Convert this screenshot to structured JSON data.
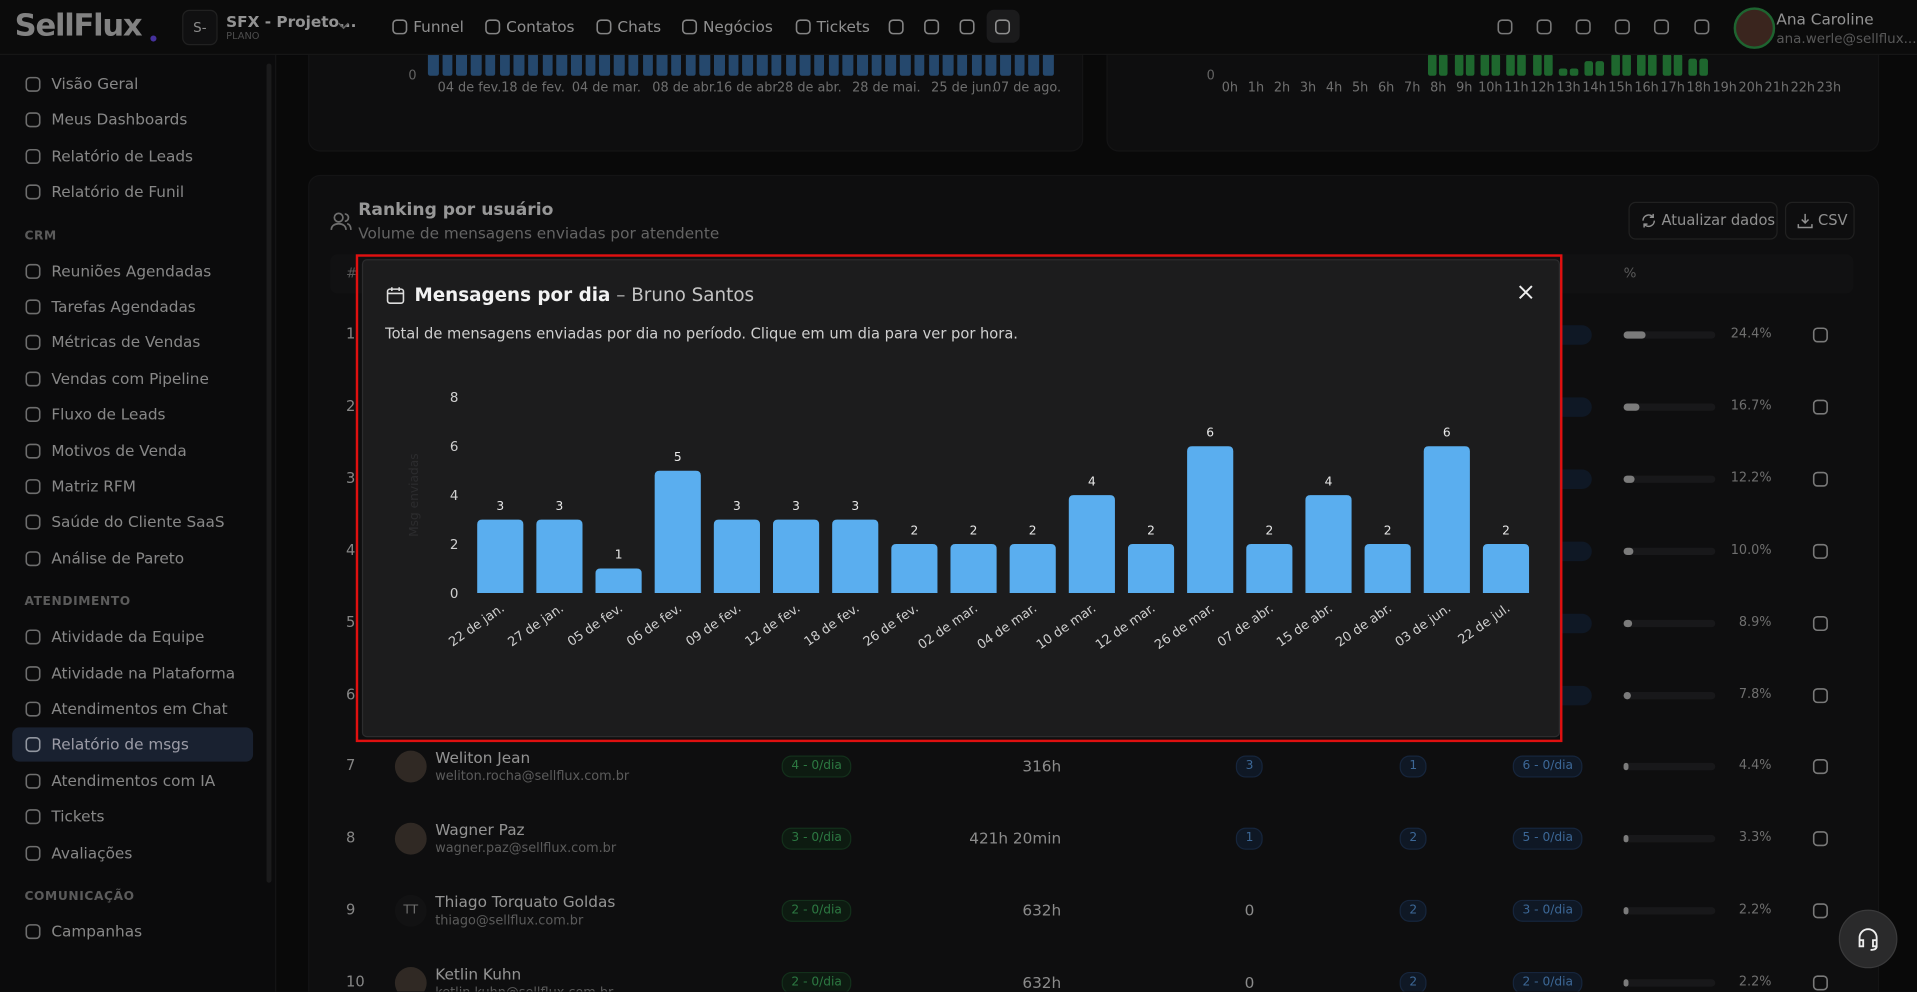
{
  "topbar": {
    "logo": "SellFlux",
    "project_badge": "S-",
    "project_name": "SFX - Projeto...",
    "project_plan": "PLANO",
    "nav": [
      "Funnel",
      "Contatos",
      "Chats",
      "Negócios",
      "Tickets"
    ],
    "user_name": "Ana Caroline",
    "user_email": "ana.werle@sellflux..."
  },
  "sidebar": {
    "items": [
      "Visão Geral",
      "Meus Dashboards",
      "Relatório de Leads",
      "Relatório de Funil"
    ],
    "sections": [
      {
        "title": "CRM",
        "items": [
          "Reuniões Agendadas",
          "Tarefas Agendadas",
          "Métricas de Vendas",
          "Vendas com Pipeline",
          "Fluxo de Leads",
          "Motivos de Venda",
          "Matriz RFM",
          "Saúde do Cliente SaaS",
          "Análise de Pareto"
        ]
      },
      {
        "title": "ATENDIMENTO",
        "items": [
          "Atividade da Equipe",
          "Atividade na Plataforma",
          "Atendimentos em Chat",
          "Relatório de msgs",
          "Atendimentos com IA",
          "Tickets",
          "Avaliações"
        ],
        "active": "Relatório de msgs"
      },
      {
        "title": "COMUNICAÇÃO",
        "items": [
          "Campanhas"
        ]
      }
    ]
  },
  "background_charts": [
    {
      "zero": "0",
      "labels": [
        "04 de fev.",
        "18 de fev.",
        "04 de mar.",
        "08 de abr.",
        "16 de abr.",
        "28 de abr.",
        "28 de mai.",
        "25 de jun.",
        "07 de ago."
      ]
    },
    {
      "zero": "0",
      "labels": [
        "0h",
        "1h",
        "2h",
        "3h",
        "4h",
        "5h",
        "6h",
        "7h",
        "8h",
        "9h",
        "10h",
        "11h",
        "12h",
        "13h",
        "14h",
        "15h",
        "16h",
        "17h",
        "18h",
        "19h",
        "20h",
        "21h",
        "22h",
        "23h"
      ]
    }
  ],
  "ranking": {
    "title": "Ranking por usuário",
    "subtitle": "Volume de mensagens enviadas por atendente",
    "refresh": "Atualizar dados",
    "csv": "CSV",
    "header": {
      "rank": "#",
      "share": "%"
    },
    "rows": [
      {
        "rank": 1,
        "share": 24.4,
        "share_label": "24.4%"
      },
      {
        "rank": 2,
        "share": 16.7,
        "share_label": "16.7%"
      },
      {
        "rank": 3,
        "share": 12.2,
        "share_label": "12.2%"
      },
      {
        "rank": 4,
        "share": 10.0,
        "share_label": "10.0%"
      },
      {
        "rank": 5,
        "share": 8.9,
        "share_label": "8.9%"
      },
      {
        "rank": 6,
        "share": 7.8,
        "share_label": "7.8%"
      },
      {
        "rank": 7,
        "name": "Weliton Jean",
        "email": "weliton.rocha@sellflux.com.br",
        "messages": "4 - 0/dia",
        "time": "316h",
        "col3": "3",
        "col4": "1",
        "col5": "6 - 0/dia",
        "share": 4.4,
        "share_label": "4.4%"
      },
      {
        "rank": 8,
        "name": "Wagner Paz",
        "email": "wagner.paz@sellflux.com.br",
        "messages": "3 - 0/dia",
        "time": "421h 20min",
        "col3": "1",
        "col4": "2",
        "col5": "5 - 0/dia",
        "share": 3.3,
        "share_label": "3.3%"
      },
      {
        "rank": 9,
        "name": "Thiago Torquato Goldas",
        "initials": "TT",
        "email": "thiago@sellflux.com.br",
        "messages": "2 - 0/dia",
        "time": "632h",
        "col3": "0",
        "col4": "2",
        "col5": "3 - 0/dia",
        "share": 2.2,
        "share_label": "2.2%"
      },
      {
        "rank": 10,
        "name": "Ketlin Kuhn",
        "email": "ketlin.kuhn@sellflux.com.br",
        "messages": "2 - 0/dia",
        "time": "632h",
        "col3": "0",
        "col4": "2",
        "col5": "2 - 0/dia",
        "share": 2.2,
        "share_label": "2.2%"
      }
    ]
  },
  "modal": {
    "title": "Mensagens por dia",
    "dash": "–",
    "user": "Bruno Santos",
    "description": "Total de mensagens enviadas por dia no período. Clique em um dia para ver por hora."
  },
  "chart_data": {
    "type": "bar",
    "y_label": "Msg enviadas",
    "categories": [
      "22 de jan.",
      "27 de jan.",
      "05 de fev.",
      "06 de fev.",
      "09 de fev.",
      "12 de fev.",
      "18 de fev.",
      "26 de fev.",
      "02 de mar.",
      "04 de mar.",
      "10 de mar.",
      "12 de mar.",
      "26 de mar.",
      "07 de abr.",
      "15 de abr.",
      "20 de abr.",
      "03 de jun.",
      "22 de jul."
    ],
    "values": [
      3,
      3,
      1,
      5,
      3,
      3,
      3,
      2,
      2,
      2,
      4,
      2,
      6,
      2,
      4,
      2,
      6,
      2
    ],
    "color": "#5aaeef",
    "ylim": [
      0,
      8
    ],
    "yticks": [
      0,
      2,
      4,
      6,
      8
    ]
  }
}
